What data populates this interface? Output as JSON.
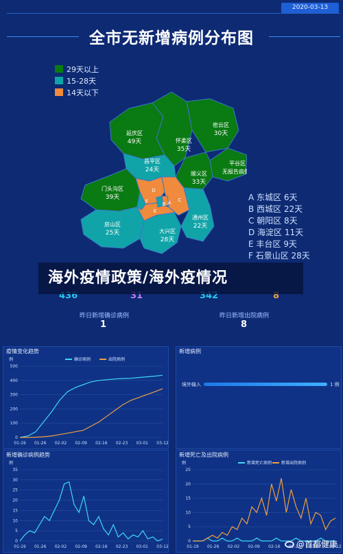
{
  "header": {
    "date": "2020-03-13",
    "title": "全市无新增病例分布图"
  },
  "legend": [
    {
      "label": "29天以上",
      "color": "#0a7a12"
    },
    {
      "label": "15-28天",
      "color": "#10a4a8"
    },
    {
      "label": "14天以下",
      "color": "#f08a3c"
    }
  ],
  "districts": [
    {
      "name": "延庆区",
      "days": "49天",
      "tier": "29天以上"
    },
    {
      "name": "怀柔区",
      "days": "35天",
      "tier": "29天以上"
    },
    {
      "name": "密云区",
      "days": "30天",
      "tier": "29天以上"
    },
    {
      "name": "昌平区",
      "days": "24天",
      "tier": "15-28天"
    },
    {
      "name": "平谷区",
      "days": "无报告病例",
      "tier": "29天以上"
    },
    {
      "name": "顺义区",
      "days": "33天",
      "tier": "29天以上"
    },
    {
      "name": "门头沟区",
      "days": "39天",
      "tier": "29天以上"
    },
    {
      "name": "房山区",
      "days": "25天",
      "tier": "15-28天"
    },
    {
      "name": "通州区",
      "days": "22天",
      "tier": "15-28天"
    },
    {
      "name": "大兴区",
      "days": "28天",
      "tier": "15-28天"
    }
  ],
  "map_letters": [
    "A",
    "B",
    "C",
    "D",
    "E",
    "F"
  ],
  "district_list": [
    "A 东城区 6天",
    "B 西城区 22天",
    "C 朝阳区 8天",
    "D 海淀区 11天",
    "E 丰台区 9天",
    "F 石景山区 28天"
  ],
  "headline": "海外疫情政策/海外疫情况",
  "stats": {
    "values": [
      "436",
      "31",
      "342",
      "8"
    ],
    "colors": [
      "#29c8f0",
      "#c07cf0",
      "#29c8f0",
      "#f0a040"
    ],
    "sub": [
      {
        "caption": "昨日新增确诊病例",
        "value": "1"
      },
      {
        "caption": "昨日新增出院病例",
        "value": "8"
      }
    ]
  },
  "panels": {
    "trend": {
      "title": "疫情变化趋势",
      "unit": "例",
      "legend": [
        "确诊病例",
        "出院病例"
      ],
      "colors": [
        "#3fd8f5",
        "#f0a040"
      ]
    },
    "new_cases": {
      "title": "新增病例",
      "bar_label": "境外输入",
      "bar_value": "1 例",
      "fraction": 1.0
    },
    "daily": {
      "title": "新增确诊病例趋势",
      "unit": "例",
      "color": "#3fd8f5"
    },
    "death_discharge": {
      "title": "新增死亡及出院病例",
      "unit": "例",
      "legend": [
        "新增死亡病例",
        "新增出院病例"
      ],
      "colors": [
        "#3fd8f5",
        "#f0a040"
      ]
    }
  },
  "chart_data": [
    {
      "type": "line",
      "title": "疫情变化趋势",
      "ylabel": "例",
      "x_ticks": [
        "01-19",
        "01-26",
        "02-02",
        "02-09",
        "02-16",
        "02-23",
        "03-01",
        "03-12"
      ],
      "ylim": [
        0,
        500
      ],
      "y_ticks": [
        0,
        100,
        200,
        300,
        400,
        500
      ],
      "series": [
        {
          "name": "确诊病例",
          "values": [
            0,
            10,
            40,
            110,
            180,
            260,
            320,
            350,
            370,
            390,
            400,
            405,
            410,
            413,
            415,
            420,
            425,
            430,
            436
          ]
        },
        {
          "name": "出院病例",
          "values": [
            0,
            0,
            2,
            5,
            10,
            20,
            30,
            40,
            50,
            80,
            110,
            150,
            190,
            230,
            260,
            280,
            300,
            320,
            342
          ]
        }
      ]
    },
    {
      "type": "line",
      "title": "新增确诊病例趋势",
      "ylabel": "例",
      "x_ticks": [
        "01-19",
        "01-26",
        "02-02",
        "02-09",
        "02-16",
        "02-23",
        "03-01",
        "03-12"
      ],
      "ylim": [
        0,
        35
      ],
      "y_ticks": [
        0,
        5,
        10,
        15,
        20,
        25,
        30,
        35
      ],
      "series": [
        {
          "name": "新增确诊病例",
          "values": [
            0,
            3,
            5,
            4,
            8,
            12,
            10,
            15,
            20,
            28,
            29,
            18,
            14,
            22,
            10,
            8,
            12,
            6,
            3,
            8,
            2,
            4,
            1,
            3,
            2,
            5,
            1,
            2,
            0,
            1
          ]
        }
      ]
    },
    {
      "type": "line",
      "title": "新增死亡及出院病例",
      "ylabel": "例",
      "x_ticks": [
        "01-19",
        "01-26",
        "02-02",
        "02-09",
        "02-16",
        "02-23",
        "03-01",
        "03-12"
      ],
      "ylim": [
        0,
        25
      ],
      "y_ticks": [
        0,
        5,
        10,
        15,
        20,
        25
      ],
      "series": [
        {
          "name": "新增死亡病例",
          "values": [
            0,
            0,
            0,
            1,
            0,
            0,
            1,
            0,
            0,
            1,
            0,
            0,
            0,
            1,
            0,
            0,
            0,
            1,
            0,
            0,
            0,
            1,
            0,
            0,
            0,
            0,
            1,
            0,
            0,
            0
          ]
        },
        {
          "name": "新增出院病例",
          "values": [
            0,
            0,
            0,
            1,
            2,
            1,
            3,
            2,
            5,
            4,
            8,
            6,
            12,
            10,
            15,
            9,
            20,
            14,
            22,
            10,
            18,
            12,
            8,
            15,
            6,
            10,
            9,
            4,
            7,
            8
          ]
        }
      ]
    }
  ]
}
